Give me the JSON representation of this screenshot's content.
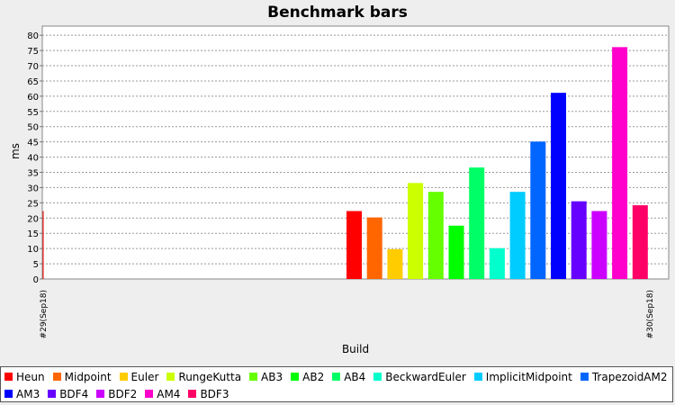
{
  "chart_data": {
    "type": "bar",
    "title": "Benchmark bars",
    "xlabel": "Build",
    "ylabel": "ms",
    "ylim": [
      0,
      83
    ],
    "yticks": [
      0,
      5,
      10,
      15,
      20,
      25,
      30,
      35,
      40,
      45,
      50,
      55,
      60,
      65,
      70,
      75,
      80
    ],
    "grid": true,
    "legend": "bottom",
    "categories": [
      "#29(Sep18)",
      "#30(Sep18)"
    ],
    "series": [
      {
        "name": "Heun",
        "color": "#ff0000",
        "values": [
          0,
          22.3
        ]
      },
      {
        "name": "Midpoint",
        "color": "#ff6600",
        "values": [
          0,
          20.2
        ]
      },
      {
        "name": "Euler",
        "color": "#ffcc00",
        "values": [
          0,
          9.8
        ]
      },
      {
        "name": "RungeKutta",
        "color": "#ccff00",
        "values": [
          0,
          31.5
        ]
      },
      {
        "name": "AB3",
        "color": "#66ff00",
        "values": [
          0,
          28.6
        ]
      },
      {
        "name": "AB2",
        "color": "#00ff00",
        "values": [
          0,
          17.5
        ]
      },
      {
        "name": "AB4",
        "color": "#00ff66",
        "values": [
          0,
          36.6
        ]
      },
      {
        "name": "BeckwardEuler",
        "color": "#00ffcc",
        "values": [
          0,
          10.1
        ]
      },
      {
        "name": "ImplicitMidpoint",
        "color": "#00ccff",
        "values": [
          0,
          28.6
        ]
      },
      {
        "name": "TrapezoidAM2",
        "color": "#0066ff",
        "values": [
          0,
          45.1
        ]
      },
      {
        "name": "AM3",
        "color": "#0000ff",
        "values": [
          0,
          61.1
        ]
      },
      {
        "name": "BDF4",
        "color": "#6600ff",
        "values": [
          0,
          25.5
        ]
      },
      {
        "name": "BDF2",
        "color": "#cc00ff",
        "values": [
          0,
          22.3
        ]
      },
      {
        "name": "AM4",
        "color": "#ff00cc",
        "values": [
          0,
          76.1
        ]
      },
      {
        "name": "BDF3",
        "color": "#ff0066",
        "values": [
          0,
          24.2
        ]
      }
    ]
  }
}
